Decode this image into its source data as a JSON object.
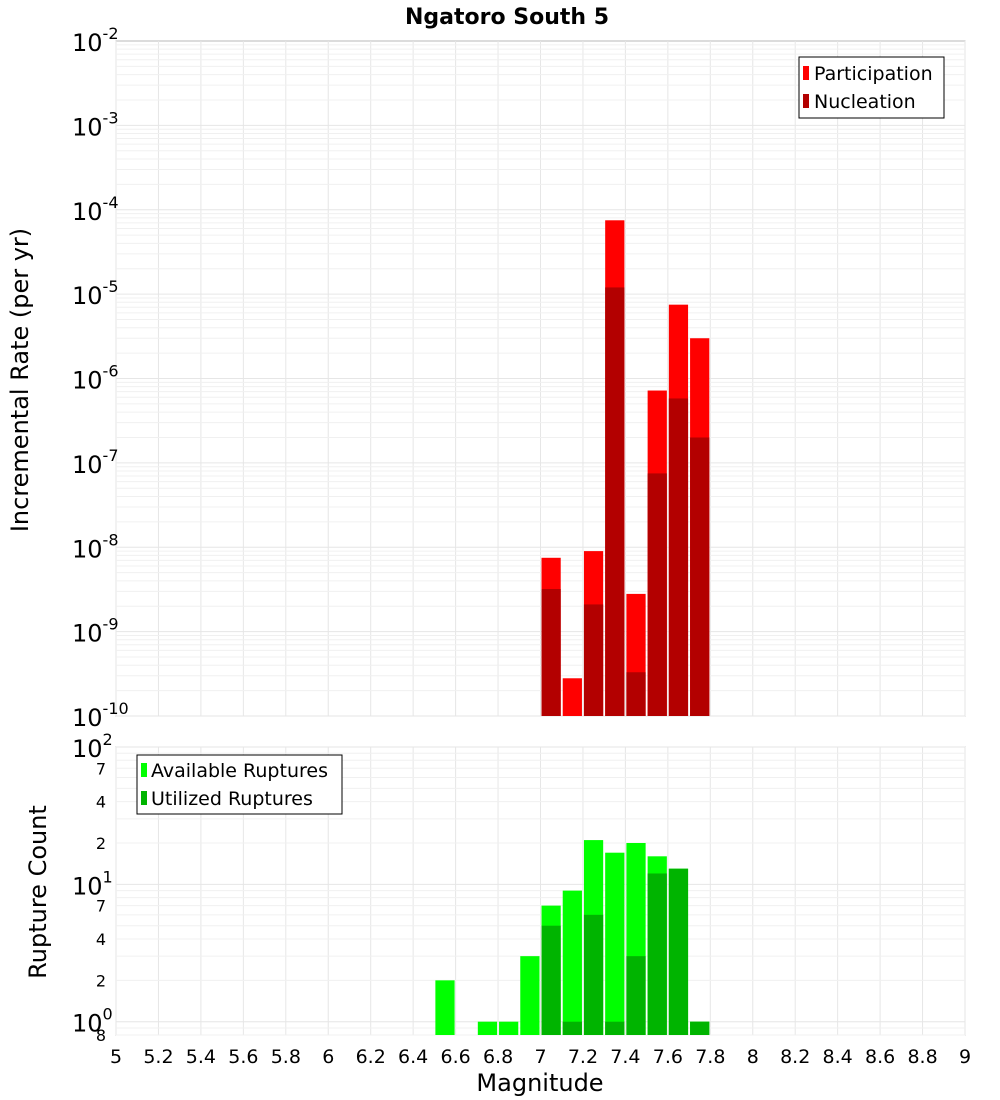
{
  "chart_data": [
    {
      "type": "bar",
      "title": "Ngatoro South 5",
      "ylabel": "Incremental Rate (per yr)",
      "xlim": [
        5,
        9
      ],
      "ylim": [
        1e-10,
        0.01
      ],
      "yscale": "log",
      "ytick_exponents": [
        "-2",
        "-3",
        "-4",
        "-5",
        "-6",
        "-7",
        "-8",
        "-9",
        "-10"
      ],
      "ytick_base": "10",
      "grid": true,
      "legend_position": "top-right",
      "bin_width": 0.1,
      "series": [
        {
          "name": "Participation",
          "color": "#ff0000",
          "x": [
            7.05,
            7.15,
            7.25,
            7.35,
            7.45,
            7.55,
            7.65,
            7.75
          ],
          "values": [
            7.5e-09,
            2.8e-10,
            9e-09,
            7.5e-05,
            2.8e-09,
            7.2e-07,
            7.5e-06,
            3e-06
          ]
        },
        {
          "name": "Nucleation",
          "color": "#b30000",
          "x": [
            7.05,
            7.25,
            7.35,
            7.45,
            7.55,
            7.65,
            7.75
          ],
          "values": [
            3.2e-09,
            2.1e-09,
            1.2e-05,
            3.3e-10,
            7.5e-08,
            5.8e-07,
            2e-07
          ]
        }
      ]
    },
    {
      "type": "bar",
      "ylabel": "Rupture Count",
      "xlabel": "Magnitude",
      "xlim": [
        5,
        9
      ],
      "ylim": [
        0.8,
        100
      ],
      "yscale": "log",
      "xticks": [
        "5",
        "5.2",
        "5.4",
        "5.6",
        "5.8",
        "6",
        "6.2",
        "6.4",
        "6.6",
        "6.8",
        "7",
        "7.2",
        "7.4",
        "7.6",
        "7.8",
        "8",
        "8.2",
        "8.4",
        "8.6",
        "8.8",
        "9"
      ],
      "ytick_labels": {
        "major_base": "10",
        "major_exponents": [
          "2",
          "1",
          "0"
        ],
        "minor": [
          "7",
          "4",
          "2",
          "7",
          "4",
          "2",
          "8"
        ]
      },
      "grid": true,
      "legend_position": "top-left",
      "bin_width": 0.1,
      "series": [
        {
          "name": "Available Ruptures",
          "color": "#00ff00",
          "x": [
            6.55,
            6.75,
            6.85,
            6.95,
            7.05,
            7.15,
            7.25,
            7.35,
            7.45,
            7.55,
            7.65,
            7.75
          ],
          "values": [
            2,
            1,
            1,
            3,
            7,
            9,
            21,
            17,
            20,
            16,
            13,
            1
          ]
        },
        {
          "name": "Utilized Ruptures",
          "color": "#00b400",
          "x": [
            7.05,
            7.15,
            7.25,
            7.35,
            7.45,
            7.55,
            7.65,
            7.75
          ],
          "values": [
            5,
            1,
            6,
            1,
            3,
            12,
            13,
            1
          ]
        }
      ]
    }
  ]
}
